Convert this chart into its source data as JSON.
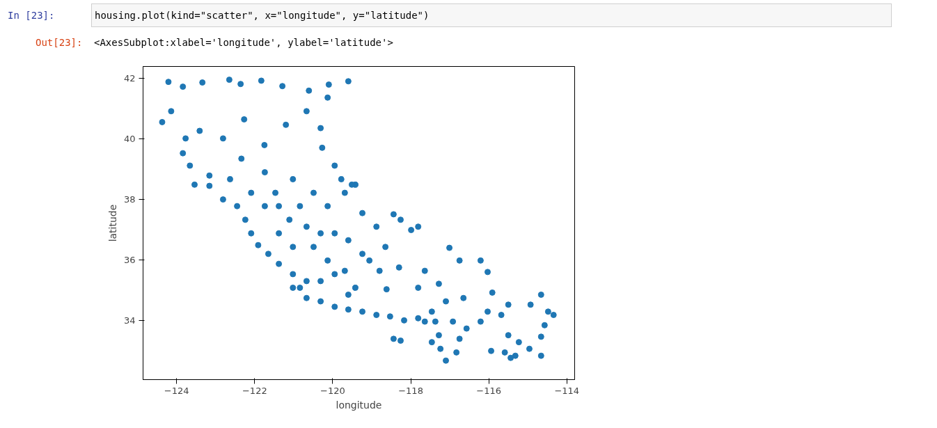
{
  "chart_data": {
    "type": "scatter",
    "xlabel": "longitude",
    "ylabel": "latitude",
    "annotations": [
      "In [23]:",
      "housing.plot(kind=\"scatter\", x=\"longitude\", y=\"latitude\")",
      "Out[23]:",
      "<AxesSubplot:xlabel='longitude', ylabel='latitude'>"
    ],
    "xlim": [
      -124.86,
      -113.8
    ],
    "ylim": [
      32.04,
      42.4
    ],
    "xticks": [
      {
        "value": -124,
        "label": "−124"
      },
      {
        "value": -122,
        "label": "−122"
      },
      {
        "value": -120,
        "label": "−120"
      },
      {
        "value": -118,
        "label": "−118"
      },
      {
        "value": -116,
        "label": "−116"
      },
      {
        "value": -114,
        "label": "−114"
      }
    ],
    "yticks": [
      34,
      36,
      38,
      40,
      42
    ],
    "grid": false,
    "marker": "circle",
    "series": [
      {
        "color": "#1f77b4",
        "x": [
          -124.21,
          -124.37,
          -124.14,
          -123.84,
          -123.34,
          -122.65,
          -122.36,
          -121.83,
          -121.29,
          -120.61,
          -120.1,
          -119.6,
          -120.13,
          -123.41,
          -123.77,
          -123.84,
          -123.66,
          -123.54,
          -123.16,
          -122.81,
          -122.27,
          -122.34,
          -121.75,
          -121.2,
          -120.67,
          -120.31,
          -120.27,
          -119.95,
          -119.78,
          -119.42,
          -121.74,
          -121.47,
          -121.38,
          -121.11,
          -120.84,
          -120.67,
          -120.31,
          -119.95,
          -119.6,
          -119.24,
          -119.06,
          -118.8,
          -118.65,
          -118.44,
          -118.26,
          -117.99,
          -117.01,
          -116.21,
          -123.16,
          -122.81,
          -122.45,
          -122.24,
          -122.09,
          -121.91,
          -121.65,
          -121.38,
          -121.02,
          -120.84,
          -120.67,
          -120.31,
          -119.95,
          -119.6,
          -119.24,
          -118.88,
          -118.53,
          -118.17,
          -117.81,
          -117.46,
          -117.37,
          -117.28,
          -117.24,
          -117.1,
          -116.83,
          -116.57,
          -116.21,
          -116.03,
          -115.68,
          -115.5,
          -115.59,
          -115.32,
          -115.23,
          -114.96,
          -114.66,
          -114.66,
          -114.57,
          -114.34,
          -114.48,
          -114.66,
          -114.93,
          -115.5,
          -115.91,
          -116.03,
          -117.28,
          -117.64,
          -117.81,
          -118.3,
          -118.62,
          -119.42,
          -119.6,
          -119.95,
          -120.31,
          -118.44,
          -118.26,
          -121.02,
          -120.67,
          -120.13,
          -119.69,
          -121.38,
          -121.02,
          -120.49,
          -121.74,
          -122.09,
          -122.63,
          -121.02,
          -120.49,
          -120.13,
          -119.51,
          -119.69,
          -119.24,
          -118.88,
          -117.81,
          -116.75,
          -116.92,
          -116.75,
          -117.46,
          -117.64,
          -117.1,
          -116.65,
          -115.44,
          -115.94
        ],
        "values": [
          41.89,
          40.56,
          40.92,
          41.73,
          41.87,
          41.96,
          41.82,
          41.93,
          41.75,
          41.6,
          41.8,
          41.91,
          41.37,
          40.27,
          40.02,
          39.53,
          39.12,
          38.49,
          38.79,
          40.02,
          40.65,
          39.35,
          39.8,
          40.47,
          40.92,
          40.36,
          39.71,
          39.12,
          38.67,
          38.49,
          38.9,
          38.22,
          37.78,
          37.33,
          37.78,
          37.1,
          36.88,
          36.88,
          36.65,
          36.2,
          35.98,
          35.64,
          36.43,
          37.51,
          37.33,
          36.99,
          36.4,
          35.98,
          38.45,
          38.0,
          37.78,
          37.33,
          36.88,
          36.49,
          36.2,
          35.87,
          35.53,
          35.08,
          34.74,
          34.63,
          34.45,
          34.36,
          34.29,
          34.18,
          34.13,
          34.0,
          34.07,
          34.29,
          33.96,
          33.51,
          33.06,
          32.67,
          32.94,
          33.73,
          33.96,
          34.29,
          34.18,
          33.51,
          32.94,
          32.83,
          33.28,
          33.06,
          32.83,
          33.46,
          33.84,
          34.18,
          34.29,
          34.85,
          34.52,
          34.52,
          34.92,
          35.6,
          35.21,
          35.64,
          35.08,
          35.75,
          35.03,
          35.08,
          34.85,
          35.53,
          35.3,
          33.39,
          33.33,
          35.08,
          35.3,
          35.98,
          35.64,
          36.88,
          36.43,
          36.43,
          37.78,
          38.22,
          38.67,
          38.67,
          38.22,
          37.78,
          38.49,
          38.22,
          37.55,
          37.1,
          37.1,
          35.98,
          33.96,
          33.39,
          33.28,
          33.96,
          34.63,
          34.74,
          32.76,
          32.99
        ]
      }
    ]
  }
}
